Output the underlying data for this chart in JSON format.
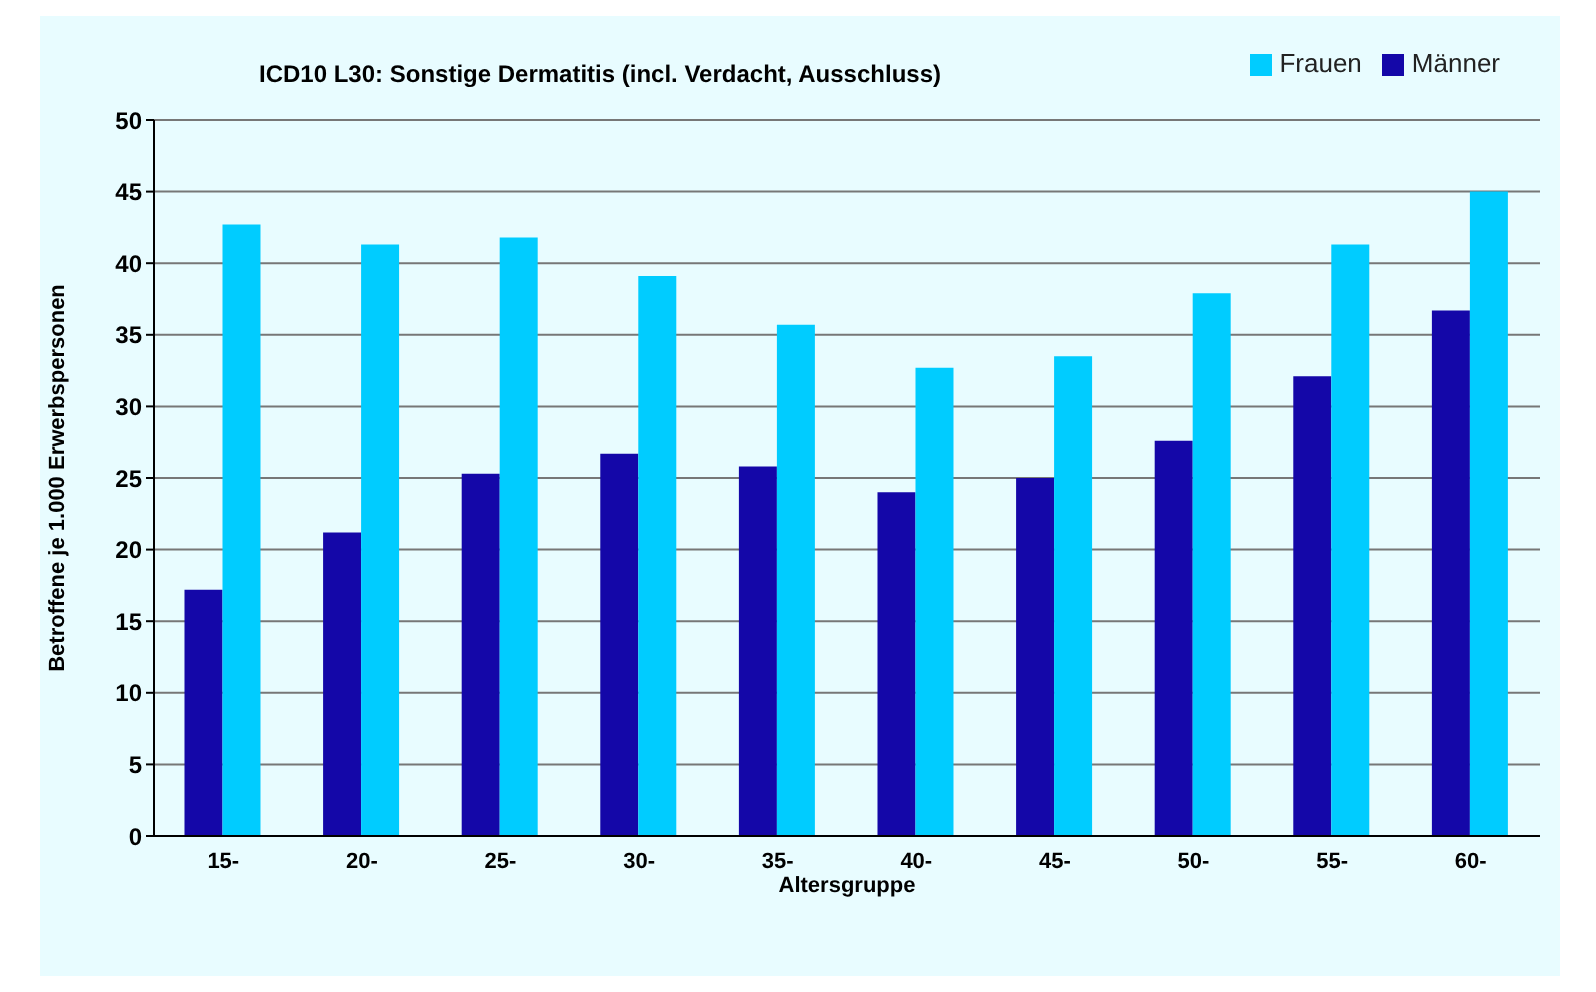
{
  "chart_data": {
    "type": "bar",
    "title": "ICD10  L30:  Sonstige Dermatitis (incl. Verdacht, Ausschluss)",
    "xlabel": "Altersgruppe",
    "ylabel": "Betroffene je 1.000 Erwerbspersonen",
    "categories": [
      "15-",
      "20-",
      "25-",
      "30-",
      "35-",
      "40-",
      "45-",
      "50-",
      "55-",
      "60-"
    ],
    "series": [
      {
        "name": "Männer",
        "color": "#1407a8",
        "values": [
          17.2,
          21.2,
          25.3,
          26.7,
          25.8,
          24.0,
          25.0,
          27.6,
          32.1,
          36.7
        ]
      },
      {
        "name": "Frauen",
        "color": "#00ccff",
        "values": [
          42.7,
          41.3,
          41.8,
          39.1,
          35.7,
          32.7,
          33.5,
          37.9,
          41.3,
          45.0
        ]
      }
    ],
    "ylim": [
      0,
      50
    ],
    "yticks": [
      0,
      5,
      10,
      15,
      20,
      25,
      30,
      35,
      40,
      45,
      50
    ],
    "grid": "y",
    "legend": "top right"
  }
}
